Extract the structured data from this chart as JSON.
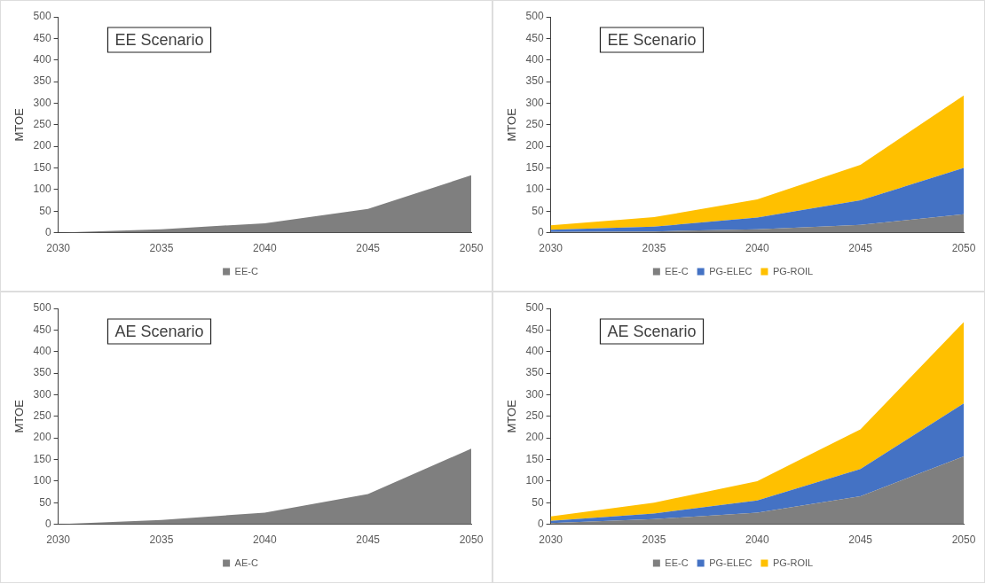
{
  "chart_data": [
    {
      "type": "area",
      "title": "EE Scenario",
      "ylabel": "MTOE",
      "stacked": true,
      "legend": "bottom",
      "grid": false,
      "categories": [
        "2030",
        "2035",
        "2040",
        "2045",
        "2050"
      ],
      "ylim": [
        0,
        500
      ],
      "yticks": [
        0,
        50,
        100,
        150,
        200,
        250,
        300,
        350,
        400,
        450,
        500
      ],
      "series": [
        {
          "name": "EE-C",
          "color": "#7f7f7f",
          "values": [
            0,
            8,
            22,
            55,
            133
          ]
        }
      ]
    },
    {
      "type": "area",
      "title": "EE Scenario",
      "ylabel": "MTOE",
      "stacked": true,
      "legend": "bottom",
      "grid": false,
      "categories": [
        "2030",
        "2035",
        "2040",
        "2045",
        "2050"
      ],
      "ylim": [
        0,
        500
      ],
      "yticks": [
        0,
        50,
        100,
        150,
        200,
        250,
        300,
        350,
        400,
        450,
        500
      ],
      "series": [
        {
          "name": "EE-C",
          "color": "#7f7f7f",
          "values": [
            2,
            3,
            8,
            18,
            43
          ]
        },
        {
          "name": "PG-ELEC",
          "color": "#4472c4",
          "values": [
            5,
            11,
            27,
            57,
            107
          ]
        },
        {
          "name": "PG-ROIL",
          "color": "#ffc000",
          "values": [
            10,
            22,
            42,
            82,
            168
          ]
        }
      ]
    },
    {
      "type": "area",
      "title": "AE Scenario",
      "ylabel": "MTOE",
      "stacked": true,
      "legend": "bottom",
      "grid": false,
      "categories": [
        "2030",
        "2035",
        "2040",
        "2045",
        "2050"
      ],
      "ylim": [
        0,
        500
      ],
      "yticks": [
        0,
        50,
        100,
        150,
        200,
        250,
        300,
        350,
        400,
        450,
        500
      ],
      "series": [
        {
          "name": "AE-C",
          "color": "#7f7f7f",
          "values": [
            0,
            10,
            27,
            70,
            175
          ]
        }
      ]
    },
    {
      "type": "area",
      "title": "AE Scenario",
      "ylabel": "MTOE",
      "stacked": true,
      "legend": "bottom",
      "grid": false,
      "categories": [
        "2030",
        "2035",
        "2040",
        "2045",
        "2050"
      ],
      "ylim": [
        0,
        500
      ],
      "yticks": [
        0,
        50,
        100,
        150,
        200,
        250,
        300,
        350,
        400,
        450,
        500
      ],
      "series": [
        {
          "name": "EE-C",
          "color": "#7f7f7f",
          "values": [
            3,
            12,
            27,
            65,
            157
          ]
        },
        {
          "name": "PG-ELEC",
          "color": "#4472c4",
          "values": [
            5,
            13,
            28,
            63,
            123
          ]
        },
        {
          "name": "PG-ROIL",
          "color": "#ffc000",
          "values": [
            10,
            25,
            45,
            92,
            188
          ]
        }
      ]
    }
  ]
}
